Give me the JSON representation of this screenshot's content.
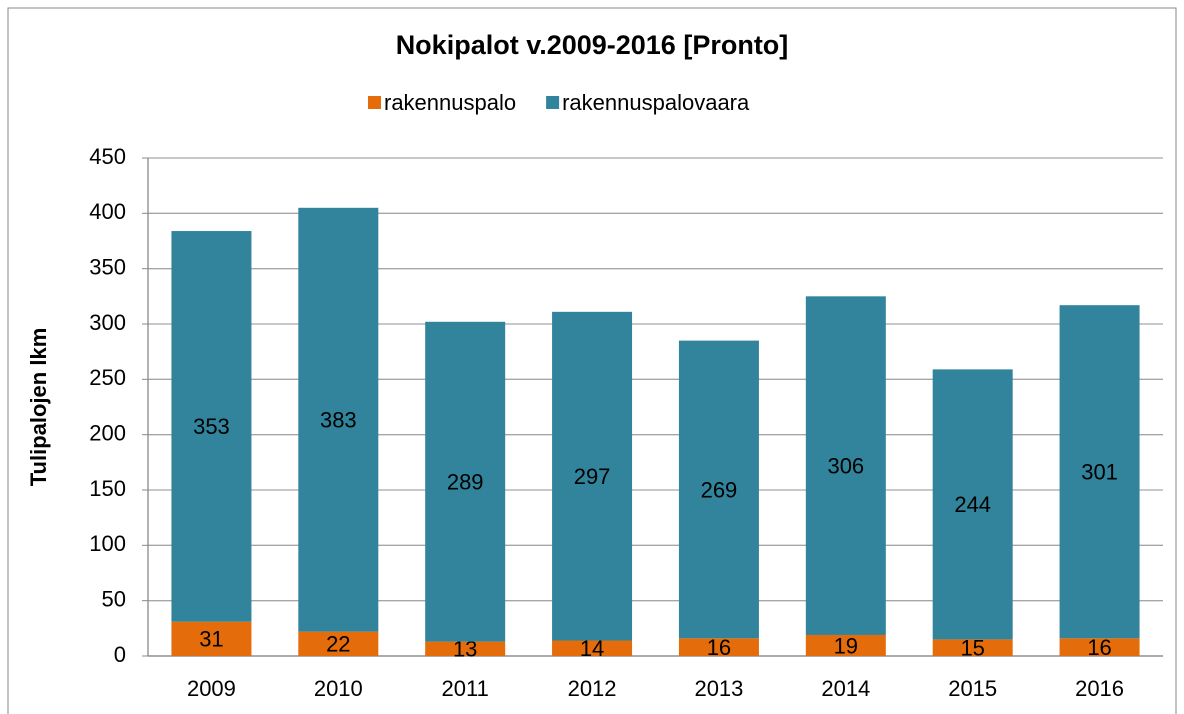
{
  "chart_data": {
    "type": "bar",
    "stacked": true,
    "title": "Nokipalot v.2009-2016 [Pronto]",
    "y_label": "Tulipalojen lkm",
    "categories": [
      "2009",
      "2010",
      "2011",
      "2012",
      "2013",
      "2014",
      "2015",
      "2016"
    ],
    "series": [
      {
        "name": "rakennuspalo",
        "color": "#e46c0a",
        "values": [
          31,
          22,
          13,
          14,
          16,
          19,
          15,
          16
        ]
      },
      {
        "name": "rakennuspalovaara",
        "color": "#31849b",
        "values": [
          353,
          383,
          289,
          297,
          269,
          306,
          244,
          301
        ]
      }
    ],
    "ylim": [
      0,
      450
    ],
    "yticks": [
      0,
      50,
      100,
      150,
      200,
      250,
      300,
      350,
      400,
      450
    ],
    "grid": true,
    "legend": "top"
  }
}
